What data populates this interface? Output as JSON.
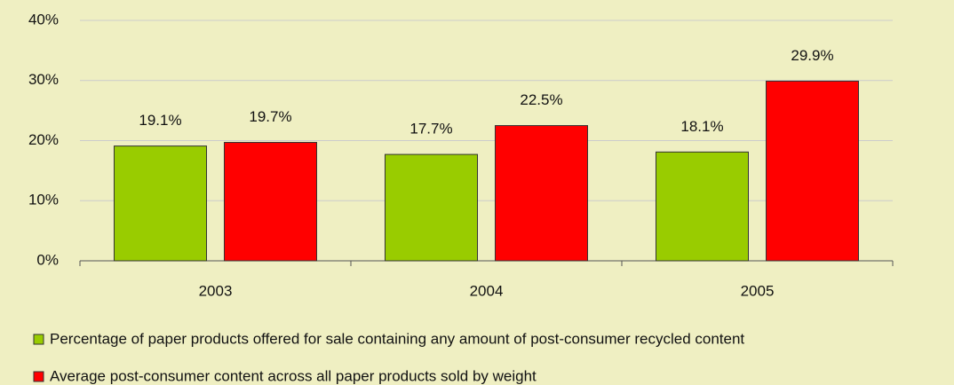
{
  "chart_data": {
    "type": "bar",
    "categories": [
      "2003",
      "2004",
      "2005"
    ],
    "series": [
      {
        "name": "Percentage of paper products offered for sale containing any amount of post-consumer recycled content",
        "color": "#99cc00",
        "values": [
          19.1,
          17.7,
          18.1
        ],
        "value_labels": [
          "19.1%",
          "17.7%",
          "18.1%"
        ]
      },
      {
        "name": "Average post-consumer content across all paper products sold by weight",
        "color": "#ff0000",
        "values": [
          19.7,
          22.5,
          29.9
        ],
        "value_labels": [
          "19.7%",
          "22.5%",
          "29.9%"
        ]
      }
    ],
    "ylim": [
      0,
      40
    ],
    "yticks": [
      {
        "value": 0,
        "label": "0%"
      },
      {
        "value": 10,
        "label": "10%"
      },
      {
        "value": 20,
        "label": "20%"
      },
      {
        "value": 30,
        "label": "30%"
      },
      {
        "value": 40,
        "label": "40%"
      }
    ],
    "grid": true,
    "legend": "bottom"
  }
}
